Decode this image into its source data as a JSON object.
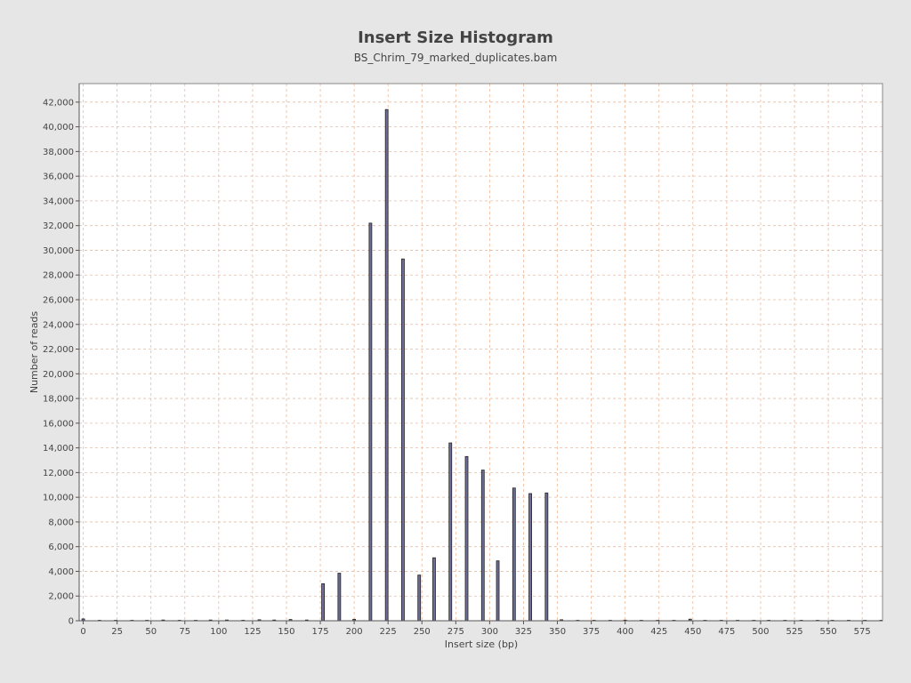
{
  "chart_data": {
    "type": "bar",
    "title": "Insert Size Histogram",
    "subtitle": "BS_Chrim_79_marked_duplicates.bam",
    "xlabel": "Insert size (bp)",
    "ylabel": "Number of reads",
    "xlim": [
      -3,
      590
    ],
    "ylim": [
      0,
      43500
    ],
    "x_ticks": [
      0,
      25,
      50,
      75,
      100,
      125,
      150,
      175,
      200,
      225,
      250,
      275,
      300,
      325,
      350,
      375,
      400,
      425,
      450,
      475,
      500,
      525,
      550,
      575
    ],
    "x_tick_labels": [
      "0",
      "25",
      "50",
      "75",
      "100",
      "125",
      "150",
      "175",
      "200",
      "225",
      "250",
      "275",
      "300",
      "325",
      "350",
      "375",
      "400",
      "425",
      "450",
      "475",
      "500",
      "525",
      "550",
      "575"
    ],
    "y_ticks": [
      0,
      2000,
      4000,
      6000,
      8000,
      10000,
      12000,
      14000,
      16000,
      18000,
      20000,
      22000,
      24000,
      26000,
      28000,
      30000,
      32000,
      34000,
      36000,
      38000,
      40000,
      42000
    ],
    "y_tick_labels": [
      "0",
      "2,000",
      "4,000",
      "6,000",
      "8,000",
      "10,000",
      "12,000",
      "14,000",
      "16,000",
      "18,000",
      "20,000",
      "22,000",
      "24,000",
      "26,000",
      "28,000",
      "30,000",
      "32,000",
      "34,000",
      "36,000",
      "38,000",
      "40,000",
      "42,000"
    ],
    "grid": true,
    "x": [
      0,
      12,
      24,
      36,
      47,
      59,
      71,
      83,
      94,
      106,
      118,
      130,
      141,
      153,
      165,
      177,
      189,
      200,
      212,
      224,
      236,
      248,
      259,
      271,
      283,
      295,
      306,
      318,
      330,
      342,
      353,
      365,
      377,
      389,
      400,
      412,
      424,
      436,
      448,
      459,
      471,
      483,
      495,
      506,
      518,
      530,
      542,
      553,
      565,
      577,
      589
    ],
    "values": [
      150,
      0,
      0,
      0,
      0,
      60,
      0,
      0,
      60,
      60,
      40,
      80,
      60,
      100,
      60,
      3000,
      3850,
      120,
      32200,
      41400,
      29300,
      3700,
      5100,
      14400,
      13300,
      12200,
      4850,
      10750,
      10300,
      10350,
      80,
      0,
      0,
      0,
      50,
      0,
      0,
      0,
      130,
      0,
      0,
      0,
      0,
      0,
      0,
      0,
      0,
      0,
      0,
      0,
      0
    ],
    "colors": {
      "background": "#e6e6e6",
      "plot_background": "#ffffff",
      "grid": "#f0b898",
      "bar_fill": "#6e6e96",
      "bar_edge": "#222222"
    }
  }
}
